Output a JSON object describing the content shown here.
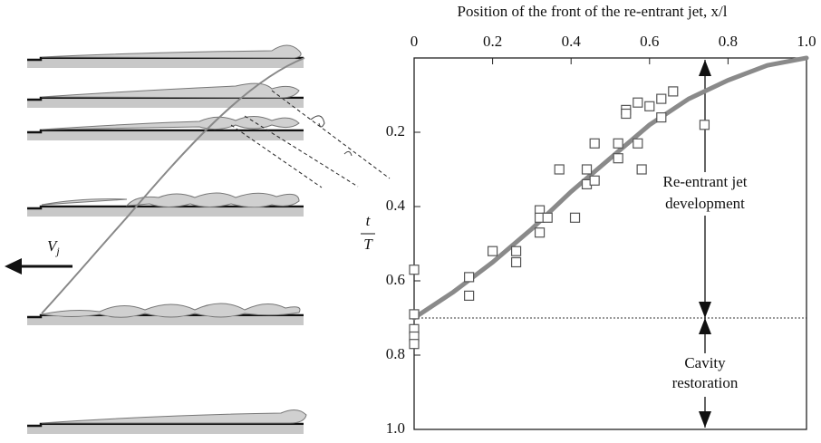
{
  "chart_data": {
    "type": "scatter",
    "x_label": "Position of the front of the re-entrant jet, x/l",
    "y_label": {
      "numerator": "t",
      "denominator": "T"
    },
    "xlim": [
      0,
      1
    ],
    "ylim": [
      0,
      1
    ],
    "xticks": [
      0,
      0.2,
      0.4,
      0.6,
      0.8,
      {
        "value": 1,
        "label": "1.0"
      }
    ],
    "yticks": [
      0.2,
      0.4,
      0.6,
      0.8,
      {
        "value": 1,
        "label": "1.0"
      }
    ],
    "y_inverted": true,
    "hline": 0.7,
    "annotations": [
      [
        "Re-entrant jet",
        "development"
      ],
      [
        "Cavity",
        "restoration"
      ]
    ],
    "series": [
      {
        "kind": "scatter",
        "color": "#555555",
        "x": [
          0.0,
          0.0,
          0.0,
          0.0,
          0.0,
          0.14,
          0.14,
          0.2,
          0.26,
          0.26,
          0.32,
          0.32,
          0.32,
          0.34,
          0.37,
          0.41,
          0.44,
          0.44,
          0.46,
          0.46,
          0.52,
          0.52,
          0.54,
          0.54,
          0.57,
          0.57,
          0.58,
          0.6,
          0.63,
          0.63,
          0.66,
          0.74
        ],
        "values": [
          0.57,
          0.69,
          0.73,
          0.75,
          0.77,
          0.59,
          0.64,
          0.52,
          0.52,
          0.55,
          0.41,
          0.43,
          0.47,
          0.43,
          0.3,
          0.43,
          0.3,
          0.34,
          0.33,
          0.23,
          0.23,
          0.27,
          0.14,
          0.15,
          0.12,
          0.23,
          0.3,
          0.13,
          0.11,
          0.16,
          0.09,
          0.18
        ]
      },
      {
        "kind": "line",
        "color": "#8a8a8a",
        "x": [
          0,
          0.1,
          0.2,
          0.3,
          0.4,
          0.5,
          0.6,
          0.7,
          0.8,
          0.9,
          1.0
        ],
        "values": [
          0.7,
          0.63,
          0.55,
          0.46,
          0.36,
          0.27,
          0.18,
          0.11,
          0.06,
          0.02,
          0
        ]
      }
    ]
  },
  "diagram": {
    "velocity_symbol": "V",
    "velocity_subscript": "j"
  }
}
